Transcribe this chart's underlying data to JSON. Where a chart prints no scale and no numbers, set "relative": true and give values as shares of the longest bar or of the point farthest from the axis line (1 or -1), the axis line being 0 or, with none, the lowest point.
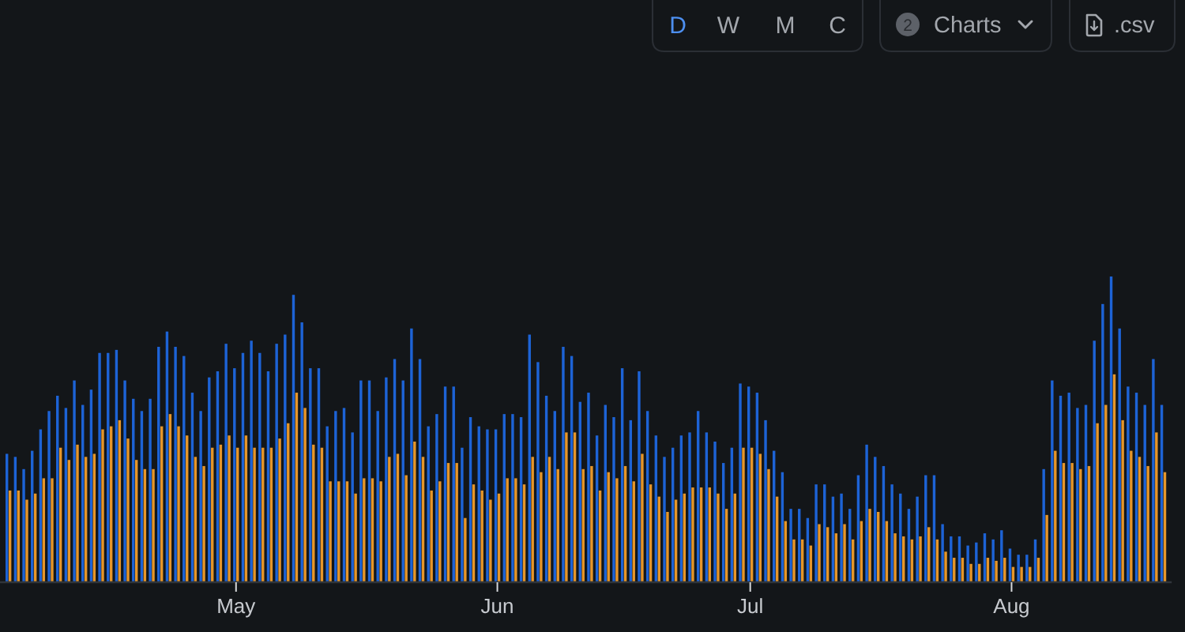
{
  "chart_data": {
    "type": "bar",
    "relative": true,
    "annotations": [
      "D",
      "W",
      "M",
      "C",
      "2",
      "Charts",
      ".csv"
    ],
    "x": [
      "--04-04",
      "--04-05",
      "--04-06",
      "--04-07",
      "--04-08",
      "--04-09",
      "--04-10",
      "--04-11",
      "--04-12",
      "--04-13",
      "--04-14",
      "--04-15",
      "--04-16",
      "--04-17",
      "--04-18",
      "--04-19",
      "--04-20",
      "--04-21",
      "--04-22",
      "--04-23",
      "--04-24",
      "--04-25",
      "--04-26",
      "--04-27",
      "--04-28",
      "--04-29",
      "--04-30",
      "--05-01",
      "--05-02",
      "--05-03",
      "--05-04",
      "--05-05",
      "--05-06",
      "--05-07",
      "--05-08",
      "--05-09",
      "--05-10",
      "--05-11",
      "--05-12",
      "--05-13",
      "--05-14",
      "--05-15",
      "--05-16",
      "--05-17",
      "--05-18",
      "--05-19",
      "--05-20",
      "--05-21",
      "--05-22",
      "--05-23",
      "--05-24",
      "--05-25",
      "--05-26",
      "--05-27",
      "--05-28",
      "--05-29",
      "--05-30",
      "--05-31",
      "--06-01",
      "--06-02",
      "--06-03",
      "--06-04",
      "--06-05",
      "--06-06",
      "--06-07",
      "--06-08",
      "--06-09",
      "--06-10",
      "--06-11",
      "--06-12",
      "--06-13",
      "--06-14",
      "--06-15",
      "--06-16",
      "--06-17",
      "--06-18",
      "--06-19",
      "--06-20",
      "--06-21",
      "--06-22",
      "--06-23",
      "--06-24",
      "--06-25",
      "--06-26",
      "--06-27",
      "--06-28",
      "--06-29",
      "--06-30",
      "--07-01",
      "--07-02",
      "--07-03",
      "--07-04",
      "--07-05",
      "--07-06",
      "--07-07",
      "--07-08",
      "--07-09",
      "--07-10",
      "--07-11",
      "--07-12",
      "--07-13",
      "--07-14",
      "--07-15",
      "--07-16",
      "--07-17",
      "--07-18",
      "--07-19",
      "--07-20",
      "--07-21",
      "--07-22",
      "--07-23",
      "--07-24",
      "--07-25",
      "--07-26",
      "--07-27",
      "--07-28",
      "--07-29",
      "--07-30",
      "--07-31",
      "--08-01",
      "--08-02",
      "--08-03",
      "--08-04",
      "--08-05",
      "--08-06",
      "--08-07",
      "--08-08",
      "--08-09",
      "--08-10",
      "--08-11",
      "--08-12",
      "--08-13",
      "--08-14",
      "--08-15",
      "--08-16",
      "--08-17",
      "--08-18",
      "--08-19"
    ],
    "xlim": [
      "--04-03",
      "--08-20"
    ],
    "xticks": [
      {
        "value": "--05-01",
        "label": "May"
      },
      {
        "value": "--06-01",
        "label": "Jun"
      },
      {
        "value": "--07-01",
        "label": "Jul"
      },
      {
        "value": "--08-01",
        "label": "Aug"
      }
    ],
    "series": [
      {
        "color": "#1d63d6",
        "values": [
          0.42,
          0.41,
          0.37,
          0.43,
          0.5,
          0.56,
          0.61,
          0.57,
          0.66,
          0.58,
          0.63,
          0.75,
          0.75,
          0.76,
          0.66,
          0.6,
          0.56,
          0.6,
          0.77,
          0.82,
          0.77,
          0.74,
          0.62,
          0.56,
          0.67,
          0.69,
          0.78,
          0.7,
          0.75,
          0.79,
          0.75,
          0.69,
          0.78,
          0.81,
          0.94,
          0.85,
          0.7,
          0.7,
          0.51,
          0.56,
          0.57,
          0.49,
          0.66,
          0.66,
          0.56,
          0.67,
          0.73,
          0.66,
          0.83,
          0.73,
          0.51,
          0.55,
          0.64,
          0.64,
          0.44,
          0.54,
          0.51,
          0.5,
          0.5,
          0.55,
          0.55,
          0.54,
          0.81,
          0.72,
          0.61,
          0.56,
          0.77,
          0.74,
          0.59,
          0.62,
          0.48,
          0.58,
          0.54,
          0.7,
          0.53,
          0.69,
          0.56,
          0.48,
          0.41,
          0.44,
          0.48,
          0.49,
          0.56,
          0.49,
          0.46,
          0.39,
          0.44,
          0.65,
          0.64,
          0.62,
          0.53,
          0.43,
          0.36,
          0.24,
          0.24,
          0.21,
          0.32,
          0.32,
          0.28,
          0.29,
          0.24,
          0.35,
          0.45,
          0.41,
          0.38,
          0.32,
          0.29,
          0.24,
          0.28,
          0.35,
          0.35,
          0.19,
          0.15,
          0.15,
          0.12,
          0.13,
          0.16,
          0.14,
          0.17,
          0.11,
          0.09,
          0.09,
          0.14,
          0.37,
          0.66,
          0.61,
          0.62,
          0.57,
          0.58,
          0.79,
          0.91,
          1,
          0.83,
          0.64,
          0.62,
          0.58,
          0.73,
          0.58
        ]
      },
      {
        "color": "#e6962a",
        "values": [
          0.3,
          0.3,
          0.27,
          0.29,
          0.34,
          0.34,
          0.44,
          0.4,
          0.45,
          0.41,
          0.42,
          0.5,
          0.51,
          0.53,
          0.47,
          0.4,
          0.37,
          0.37,
          0.51,
          0.55,
          0.51,
          0.48,
          0.41,
          0.38,
          0.44,
          0.45,
          0.48,
          0.44,
          0.48,
          0.44,
          0.44,
          0.44,
          0.47,
          0.52,
          0.62,
          0.57,
          0.45,
          0.44,
          0.33,
          0.33,
          0.33,
          0.29,
          0.34,
          0.34,
          0.33,
          0.41,
          0.42,
          0.35,
          0.46,
          0.41,
          0.3,
          0.33,
          0.39,
          0.39,
          0.21,
          0.32,
          0.3,
          0.27,
          0.29,
          0.34,
          0.34,
          0.32,
          0.41,
          0.36,
          0.41,
          0.37,
          0.49,
          0.49,
          0.37,
          0.38,
          0.3,
          0.36,
          0.34,
          0.38,
          0.33,
          0.42,
          0.32,
          0.28,
          0.23,
          0.27,
          0.29,
          0.31,
          0.31,
          0.31,
          0.29,
          0.24,
          0.29,
          0.44,
          0.44,
          0.42,
          0.37,
          0.28,
          0.2,
          0.14,
          0.14,
          0.12,
          0.19,
          0.18,
          0.16,
          0.19,
          0.14,
          0.2,
          0.24,
          0.23,
          0.2,
          0.16,
          0.15,
          0.14,
          0.15,
          0.18,
          0.14,
          0.1,
          0.08,
          0.08,
          0.06,
          0.06,
          0.08,
          0.07,
          0.08,
          0.05,
          0.05,
          0.05,
          0.08,
          0.22,
          0.43,
          0.39,
          0.39,
          0.37,
          0.38,
          0.52,
          0.58,
          0.68,
          0.53,
          0.43,
          0.41,
          0.38,
          0.49,
          0.36
        ]
      }
    ]
  }
}
